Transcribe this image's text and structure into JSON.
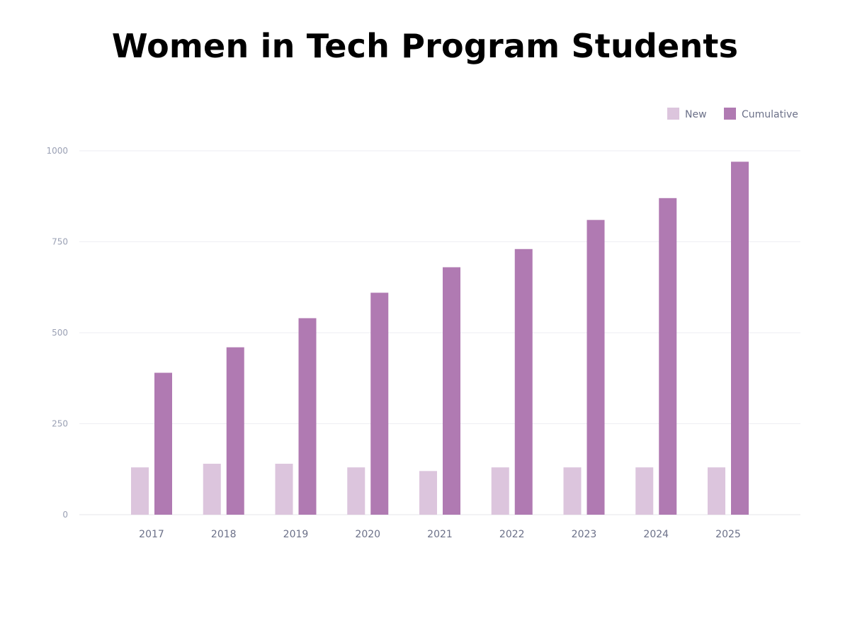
{
  "chart_data": {
    "type": "bar",
    "title": "Women in Tech Program Students",
    "xlabel": "",
    "ylabel": "",
    "categories": [
      "2017",
      "2018",
      "2019",
      "2020",
      "2021",
      "2022",
      "2023",
      "2024",
      "2025"
    ],
    "highlight_category": "2025",
    "series": [
      {
        "name": "New",
        "color": "#dcc5dd",
        "values": [
          130,
          140,
          140,
          130,
          120,
          130,
          130,
          130,
          130
        ]
      },
      {
        "name": "Cumulative",
        "color": "#b07ab2",
        "values": [
          390,
          460,
          540,
          610,
          680,
          730,
          810,
          870,
          970
        ]
      }
    ],
    "yticks": [
      0,
      250,
      500,
      750,
      1000
    ],
    "ylim": [
      0,
      1000
    ],
    "grid": true,
    "legend_position": "top-right",
    "colors": {
      "axis_text": "#9aa0b4",
      "category_text": "#6b7088",
      "highlight_text": "#b07ab2",
      "gridline": "#eeeef3"
    }
  }
}
